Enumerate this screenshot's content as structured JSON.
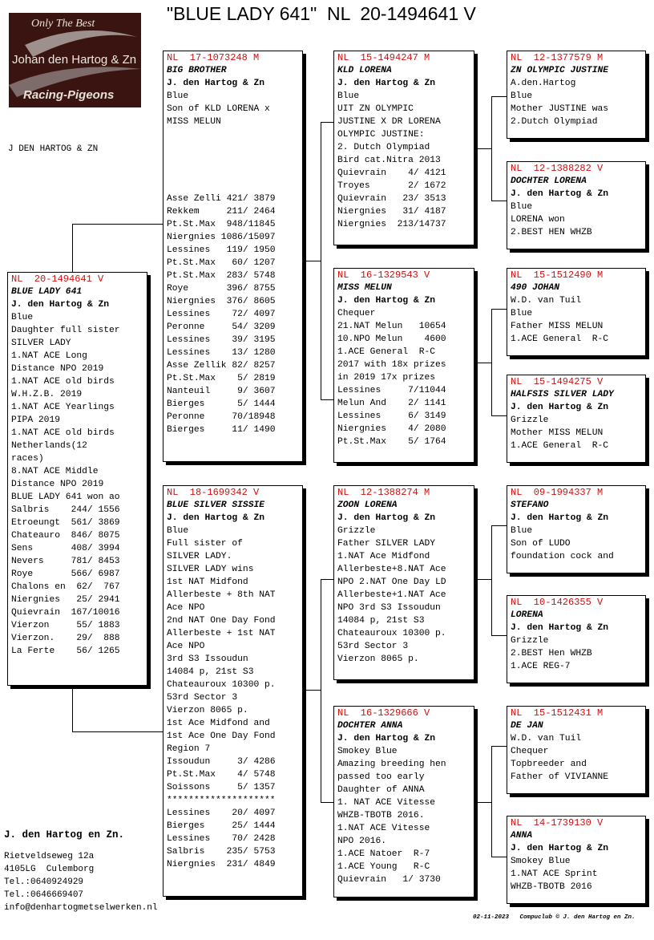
{
  "title": "\"BLUE LADY 641\"  NL  20-1494641 V",
  "logo": {
    "line1": "Only The Best",
    "line2": "Johan den Hartog & Zn",
    "line3": "Racing-Pigeons"
  },
  "breeder_small": "J DEN HARTOG & ZN",
  "cards": {
    "subject": {
      "ring": "NL  20-1494641 V",
      "name": "BLUE LADY 641",
      "breeder": "J. den Hartog & Zn",
      "lines": [
        "Blue",
        "Daughter full sister",
        "SILVER LADY",
        "1.NAT ACE Long",
        "Distance NPO 2019",
        "1.NAT ACE old birds",
        "W.H.Z.B. 2019",
        "1.NAT ACE Yearlings",
        "PIPA 2019",
        "1.NAT ACE old birds",
        "Netherlands(12",
        "races)",
        "8.NAT ACE Middle",
        "Distance NPO 2019",
        "BLUE LADY 641 won ao",
        "Salbris    244/ 1556",
        "Etroeungt  561/ 3869",
        "Chateauro  846/ 8075",
        "Sens       408/ 3994",
        "Nevers     781/ 8453",
        "Roye       566/ 6987",
        "Chalons en  62/  767",
        "Niergnies   25/ 2941",
        "Quievrain  167/10016",
        "Vierzon     55/ 1883",
        "Vierzon.    29/  888",
        "La Ferte    56/ 1265"
      ]
    },
    "father": {
      "ring": "NL  17-1073248 M",
      "name": "BIG BROTHER",
      "breeder": "J. den Hartog & Zn",
      "lines": [
        "Blue",
        "Son of KLD LORENA x",
        "MISS MELUN"
      ],
      "lines2": [
        "Asse Zelli 421/ 3879",
        "Rekkem     211/ 2464",
        "Pt.St.Max  948/11845",
        "Niergnies 1086/15097",
        "Lessines   119/ 1950",
        "Pt.St.Max   60/ 1207",
        "Pt.St.Max  283/ 5748",
        "Roye       396/ 8755",
        "Niergnies  376/ 8605",
        "Lessines    72/ 4097",
        "Peronne     54/ 3209",
        "Lessines    39/ 3195",
        "Lessines    13/ 1280",
        "Asse Zellik 82/ 8257",
        "Pt.St.Max    5/ 2819",
        "Nanteuil     9/ 3607",
        "Bierges      5/ 1444",
        "Peronne     70/18948",
        "Bierges     11/ 1490"
      ]
    },
    "mother": {
      "ring": "NL  18-1699342 V",
      "name": "BLUE SILVER SISSIE",
      "breeder": "J. den Hartog & Zn",
      "lines": [
        "Blue",
        "Full sister of",
        "SILVER LADY.",
        "SILVER LADY wins",
        "1st NAT Midfond",
        "Allerbeste + 8th NAT",
        "Ace NPO",
        "2nd NAT One Day Fond",
        "Allerbeste + 1st NAT",
        "Ace NPO",
        "3rd S3 Issoudun",
        "14084 p, 21st S3",
        "Chateauroux 10300 p.",
        "53rd Sector 3",
        "Vierzon 8065 p.",
        "1st Ace Midfond and",
        "1st Ace One Day Fond",
        "Region 7",
        "Issoudun     3/ 4286",
        "Pt.St.Max    4/ 5748",
        "Soissons     5/ 1357",
        "********************",
        "Lessines    20/ 4097",
        "Bierges     25/ 1444",
        "Lessines    70/ 2428",
        "Salbris    235/ 5753",
        "Niergnies  231/ 4849"
      ]
    },
    "ff": {
      "ring": "NL  15-1494247 M",
      "name": "KLD LORENA",
      "breeder": "J. den Hartog & Zn",
      "lines": [
        "Blue",
        "UIT ZN OLYMPIC",
        "JUSTINE X DR LORENA",
        "OLYMPIC JUSTINE:",
        "2. Dutch Olympiad",
        "Bird cat.Nitra 2013",
        "Quievrain    4/ 4121",
        "Troyes       2/ 1672",
        "Quievrain   23/ 3513",
        "Niergnies   31/ 4187",
        "Niergnies  213/14737"
      ]
    },
    "fm": {
      "ring": "NL  16-1329543 V",
      "name": "MISS MELUN",
      "breeder": "J. den Hartog & Zn",
      "lines": [
        "Chequer",
        "21.NAT Melun   10654",
        "10.NPO Melun    4600",
        "1.ACE General  R-C",
        "2017 with 18x prizes",
        "in 2019 17x prizes",
        "Lessines     7/11044",
        "Melun And    2/ 1141",
        "Lessines     6/ 3149",
        "Niergnies    4/ 2080",
        "Pt.St.Max    5/ 1764"
      ]
    },
    "mf": {
      "ring": "NL  12-1388274 M",
      "name": "ZOON LORENA",
      "breeder": "J. den Hartog & Zn",
      "lines": [
        "Grizzle",
        "Father SILVER LADY",
        "1.NAT Ace Midfond",
        "Allerbeste+8.NAT Ace",
        "NPO 2.NAT One Day LD",
        "Allerbeste+1.NAT Ace",
        "NPO 3rd S3 Issoudun",
        "14084 p, 21st S3",
        "Chateauroux 10300 p.",
        "53rd Sector 3",
        "Vierzon 8065 p."
      ]
    },
    "mm": {
      "ring": "NL  16-1329666 V",
      "name": "DOCHTER ANNA",
      "breeder": "J. den Hartog & Zn",
      "lines": [
        "Smokey Blue",
        "Amazing breeding hen",
        "passed too early",
        "Daughter of ANNA",
        "1. NAT ACE Vitesse",
        "WHZB-TBOTB 2016.",
        "1.NAT ACE Vitesse",
        "NPO 2016.",
        "1.ACE Natoer  R-7",
        "1.ACE Young   R-C",
        "Quievrain   1/ 3730"
      ]
    },
    "fff": {
      "ring": "NL  12-1377579 M",
      "name": "ZN OLYMPIC JUSTINE",
      "breeder": "A.den.Hartog",
      "lines": [
        "Blue",
        "Mother JUSTINE was",
        "2.Dutch Olympiad"
      ]
    },
    "ffm": {
      "ring": "NL  12-1388282 V",
      "name": "DOCHTER LORENA",
      "breeder": "J. den Hartog & Zn",
      "lines": [
        "Blue",
        "LORENA won",
        "2.BEST HEN WHZB"
      ]
    },
    "fmf": {
      "ring": "NL  15-1512490 M",
      "name": "490 JOHAN",
      "breeder": "W.D. van Tuil",
      "lines": [
        "Blue",
        "Father MISS MELUN",
        "1.ACE General  R-C"
      ]
    },
    "fmm": {
      "ring": "NL  15-1494275 V",
      "name": "HALFSIS SILVER LADY",
      "breeder": "J. den Hartog & Zn",
      "lines": [
        "Grizzle",
        "Mother MISS MELUN",
        "1.ACE General  R-C"
      ]
    },
    "mff": {
      "ring": "NL  09-1994337 M",
      "name": "STEFANO",
      "breeder": "J. den Hartog & Zn",
      "lines": [
        "Blue",
        "Son of LUDO",
        "foundation cock and"
      ]
    },
    "mfm": {
      "ring": "NL  10-1426355 V",
      "name": "LORENA",
      "breeder": "J. den Hartog & Zn",
      "lines": [
        "Grizzle",
        "2.BEST Hen WHZB",
        "1.ACE REG-7"
      ]
    },
    "mmf": {
      "ring": "NL  15-1512431 M",
      "name": "DE JAN",
      "breeder": "W.D. van Tuil",
      "lines": [
        "Chequer",
        "Topbreeder and",
        "Father of VIVIANNE"
      ]
    },
    "mmm": {
      "ring": "NL  14-1739130 V",
      "name": "ANNA",
      "breeder": "J. den Hartog & Zn",
      "lines": [
        "Smokey Blue",
        "1.NAT ACE Sprint",
        "WHZB-TBOTB 2016"
      ]
    }
  },
  "footer": {
    "name": "J. den Hartog en Zn.",
    "contact": [
      "Rietveldseweg 12a",
      "4105LG  Culemborg",
      "Tel.:0640924929",
      "Tel.:0646669407",
      "info@denhartogmetselwerken.nl"
    ],
    "stamp": "02-11-2023   Compuclub © J. den Hartog en Zn."
  }
}
